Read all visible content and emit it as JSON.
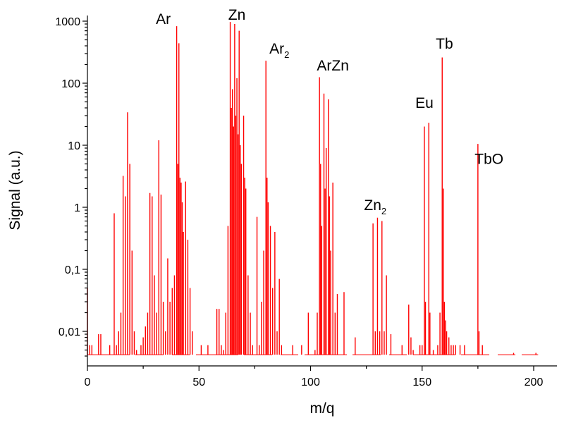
{
  "chart_data": {
    "type": "line",
    "xlabel": "m/q",
    "ylabel": "Signal (a.u.)",
    "xlim": [
      0,
      210
    ],
    "ylim": [
      0.0035,
      1200
    ],
    "yscale": "log",
    "grid": false,
    "legend": "none",
    "line_color": "#ff0000",
    "x_ticks": [
      {
        "value": 0,
        "label": "0"
      },
      {
        "value": 50,
        "label": "50"
      },
      {
        "value": 100,
        "label": "100"
      },
      {
        "value": 150,
        "label": "150"
      },
      {
        "value": 200,
        "label": "200"
      }
    ],
    "y_ticks": [
      {
        "value": 0.01,
        "label": "0,01"
      },
      {
        "value": 0.1,
        "label": "0,1"
      },
      {
        "value": 1,
        "label": "1"
      },
      {
        "value": 10,
        "label": "10"
      },
      {
        "value": 100,
        "label": "100"
      },
      {
        "value": 1000,
        "label": "1000"
      }
    ],
    "annotations": [
      {
        "main": "Ar",
        "sub": "",
        "x": 34,
        "y": 900
      },
      {
        "main": "Zn",
        "sub": "",
        "x": 67,
        "y": 1050
      },
      {
        "main": "Ar",
        "sub": "2",
        "x": 86,
        "y": 300
      },
      {
        "main": "ArZn",
        "sub": "",
        "x": 110,
        "y": 160
      },
      {
        "main": "Zn",
        "sub": "2",
        "x": 129,
        "y": 0.9
      },
      {
        "main": "Eu",
        "sub": "",
        "x": 151,
        "y": 40
      },
      {
        "main": "Tb",
        "sub": "",
        "x": 160,
        "y": 360
      },
      {
        "main": "TbO",
        "sub": "",
        "x": 180,
        "y": 5
      }
    ],
    "baseline": 0.0042,
    "peaks": [
      {
        "x": 0,
        "y": 0.05
      },
      {
        "x": 1,
        "y": 0.006
      },
      {
        "x": 2,
        "y": 0.006
      },
      {
        "x": 5,
        "y": 0.009
      },
      {
        "x": 6,
        "y": 0.009
      },
      {
        "x": 10,
        "y": 0.006
      },
      {
        "x": 12,
        "y": 0.8
      },
      {
        "x": 13,
        "y": 0.006
      },
      {
        "x": 14,
        "y": 0.01
      },
      {
        "x": 15,
        "y": 0.02
      },
      {
        "x": 16,
        "y": 3.2
      },
      {
        "x": 17,
        "y": 1.5
      },
      {
        "x": 18,
        "y": 34
      },
      {
        "x": 19,
        "y": 5
      },
      {
        "x": 20,
        "y": 0.2
      },
      {
        "x": 21,
        "y": 0.01
      },
      {
        "x": 22,
        "y": 0.005
      },
      {
        "x": 24,
        "y": 0.006
      },
      {
        "x": 25,
        "y": 0.008
      },
      {
        "x": 26,
        "y": 0.012
      },
      {
        "x": 27,
        "y": 0.02
      },
      {
        "x": 28,
        "y": 1.7
      },
      {
        "x": 29,
        "y": 1.5
      },
      {
        "x": 30,
        "y": 0.08
      },
      {
        "x": 31,
        "y": 0.02
      },
      {
        "x": 32,
        "y": 12
      },
      {
        "x": 33,
        "y": 1.6
      },
      {
        "x": 34,
        "y": 0.03
      },
      {
        "x": 35,
        "y": 0.01
      },
      {
        "x": 36,
        "y": 0.15
      },
      {
        "x": 37,
        "y": 0.03
      },
      {
        "x": 38,
        "y": 0.05
      },
      {
        "x": 39,
        "y": 0.08
      },
      {
        "x": 40,
        "y": 830
      },
      {
        "x": 40.5,
        "y": 5
      },
      {
        "x": 41,
        "y": 440
      },
      {
        "x": 41.5,
        "y": 3
      },
      {
        "x": 42,
        "y": 2.5
      },
      {
        "x": 42.5,
        "y": 1.2
      },
      {
        "x": 43,
        "y": 0.4
      },
      {
        "x": 44,
        "y": 2.6
      },
      {
        "x": 45,
        "y": 0.3
      },
      {
        "x": 46,
        "y": 0.05
      },
      {
        "x": 47,
        "y": 0.01
      },
      {
        "x": 51,
        "y": 0.006
      },
      {
        "x": 54,
        "y": 0.006
      },
      {
        "x": 58,
        "y": 0.023
      },
      {
        "x": 59,
        "y": 0.023
      },
      {
        "x": 60,
        "y": 0.006
      },
      {
        "x": 61,
        "y": 0.005
      },
      {
        "x": 62,
        "y": 0.02
      },
      {
        "x": 63,
        "y": 0.5
      },
      {
        "x": 64,
        "y": 970
      },
      {
        "x": 64.5,
        "y": 40
      },
      {
        "x": 65,
        "y": 80
      },
      {
        "x": 65.5,
        "y": 20
      },
      {
        "x": 66,
        "y": 900
      },
      {
        "x": 66.5,
        "y": 30
      },
      {
        "x": 67,
        "y": 120
      },
      {
        "x": 67.5,
        "y": 15
      },
      {
        "x": 68,
        "y": 700
      },
      {
        "x": 68.5,
        "y": 10
      },
      {
        "x": 69,
        "y": 5
      },
      {
        "x": 70,
        "y": 30
      },
      {
        "x": 70.5,
        "y": 3
      },
      {
        "x": 71,
        "y": 2
      },
      {
        "x": 72,
        "y": 0.08
      },
      {
        "x": 73,
        "y": 0.02
      },
      {
        "x": 74,
        "y": 0.006
      },
      {
        "x": 76,
        "y": 0.7
      },
      {
        "x": 77,
        "y": 0.006
      },
      {
        "x": 78,
        "y": 0.03
      },
      {
        "x": 79,
        "y": 0.2
      },
      {
        "x": 80,
        "y": 230
      },
      {
        "x": 80.5,
        "y": 3
      },
      {
        "x": 81,
        "y": 1.2
      },
      {
        "x": 82,
        "y": 0.5
      },
      {
        "x": 83,
        "y": 0.05
      },
      {
        "x": 84,
        "y": 0.4
      },
      {
        "x": 85,
        "y": 0.01
      },
      {
        "x": 86,
        "y": 0.07
      },
      {
        "x": 87,
        "y": 0.006
      },
      {
        "x": 92,
        "y": 0.006
      },
      {
        "x": 96,
        "y": 0.006
      },
      {
        "x": 99,
        "y": 0.02
      },
      {
        "x": 102,
        "y": 0.005
      },
      {
        "x": 103,
        "y": 0.02
      },
      {
        "x": 104,
        "y": 125
      },
      {
        "x": 104.5,
        "y": 5
      },
      {
        "x": 105,
        "y": 0.5
      },
      {
        "x": 106,
        "y": 68
      },
      {
        "x": 106.5,
        "y": 2
      },
      {
        "x": 107,
        "y": 9
      },
      {
        "x": 108,
        "y": 55
      },
      {
        "x": 108.5,
        "y": 1.5
      },
      {
        "x": 109,
        "y": 0.2
      },
      {
        "x": 110,
        "y": 2.5
      },
      {
        "x": 111,
        "y": 0.02
      },
      {
        "x": 112,
        "y": 0.04
      },
      {
        "x": 115,
        "y": 0.043
      },
      {
        "x": 120,
        "y": 0.008
      },
      {
        "x": 128,
        "y": 0.55
      },
      {
        "x": 129,
        "y": 0.01
      },
      {
        "x": 130,
        "y": 0.68
      },
      {
        "x": 131,
        "y": 0.01
      },
      {
        "x": 132,
        "y": 0.6
      },
      {
        "x": 133,
        "y": 0.01
      },
      {
        "x": 134,
        "y": 0.08
      },
      {
        "x": 136,
        "y": 0.009
      },
      {
        "x": 141,
        "y": 0.006
      },
      {
        "x": 144,
        "y": 0.027
      },
      {
        "x": 145,
        "y": 0.008
      },
      {
        "x": 146,
        "y": 0.005
      },
      {
        "x": 149,
        "y": 0.006
      },
      {
        "x": 150,
        "y": 0.006
      },
      {
        "x": 151,
        "y": 20
      },
      {
        "x": 151.5,
        "y": 0.03
      },
      {
        "x": 153,
        "y": 23
      },
      {
        "x": 153.5,
        "y": 0.02
      },
      {
        "x": 155,
        "y": 0.005
      },
      {
        "x": 157,
        "y": 0.006
      },
      {
        "x": 158,
        "y": 0.02
      },
      {
        "x": 159,
        "y": 260
      },
      {
        "x": 159.5,
        "y": 2
      },
      {
        "x": 160,
        "y": 0.03
      },
      {
        "x": 160.5,
        "y": 0.015
      },
      {
        "x": 161,
        "y": 0.01
      },
      {
        "x": 162,
        "y": 0.008
      },
      {
        "x": 163,
        "y": 0.006
      },
      {
        "x": 164,
        "y": 0.006
      },
      {
        "x": 165,
        "y": 0.006
      },
      {
        "x": 167,
        "y": 0.006
      },
      {
        "x": 169,
        "y": 0.006
      },
      {
        "x": 175,
        "y": 10.5
      },
      {
        "x": 175.5,
        "y": 0.01
      },
      {
        "x": 177,
        "y": 0.006
      },
      {
        "x": 191,
        "y": 0.0045
      },
      {
        "x": 201,
        "y": 0.0045
      }
    ]
  }
}
